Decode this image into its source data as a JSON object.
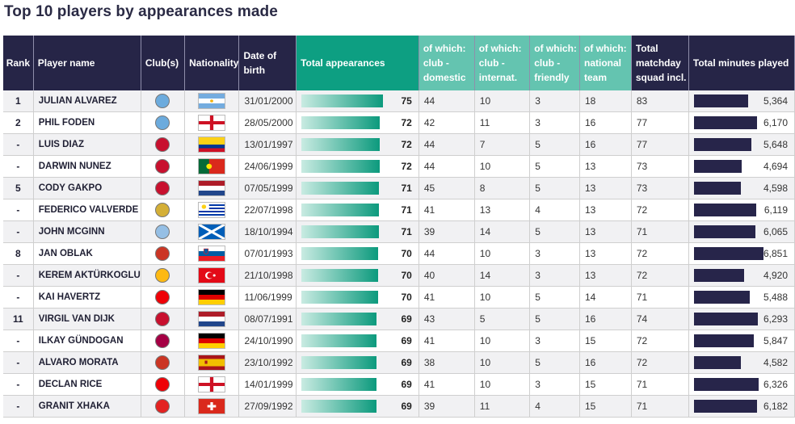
{
  "title": "Top 10 players by appearances made",
  "headers": {
    "rank": "Rank",
    "player": "Player name",
    "club": "Club(s)",
    "nationality": "Nationality",
    "dob": "Date of birth",
    "total": "Total appearances",
    "domestic": "of which: club - domestic",
    "internat": "of which: club - internat.",
    "friendly": "of which: club - friendly",
    "national": "of which: national team",
    "matchday": "Total matchday squad incl.",
    "minutes": "Total minutes played"
  },
  "colors": {
    "header_dark": "#262547",
    "header_total": "#0d9f82",
    "header_sub": "#64c4b0",
    "minutes_bar": "#27254a"
  },
  "chart_data": {
    "type": "table",
    "title": "Top 10 players by appearances made",
    "columns": [
      "Rank",
      "Player name",
      "Club(s)",
      "Nationality",
      "Date of birth",
      "Total appearances",
      "of which: club - domestic",
      "of which: club - internat.",
      "of which: club - friendly",
      "of which: national team",
      "Total matchday squad incl.",
      "Total minutes played"
    ],
    "rows": [
      {
        "rank": "1",
        "name": "JULIAN ALVAREZ",
        "club": "Manchester City",
        "crest": "#6cabdd",
        "flag": "argentina",
        "dob": "31/01/2000",
        "total": 75,
        "domestic": 44,
        "internat": 10,
        "friendly": 3,
        "national": 18,
        "matchday": 83,
        "minutes": "5,364",
        "minutes_value": 5364
      },
      {
        "rank": "2",
        "name": "PHIL FODEN",
        "club": "Manchester City",
        "crest": "#6cabdd",
        "flag": "england",
        "dob": "28/05/2000",
        "total": 72,
        "domestic": 42,
        "internat": 11,
        "friendly": 3,
        "national": 16,
        "matchday": 77,
        "minutes": "6,170",
        "minutes_value": 6170
      },
      {
        "rank": "-",
        "name": "LUIS DIAZ",
        "club": "Liverpool",
        "crest": "#c8102e",
        "flag": "colombia",
        "dob": "13/01/1997",
        "total": 72,
        "domestic": 44,
        "internat": 7,
        "friendly": 5,
        "national": 16,
        "matchday": 77,
        "minutes": "5,648",
        "minutes_value": 5648
      },
      {
        "rank": "-",
        "name": "DARWIN NUNEZ",
        "club": "Liverpool",
        "crest": "#c8102e",
        "flag": "portugal",
        "dob": "24/06/1999",
        "total": 72,
        "domestic": 44,
        "internat": 10,
        "friendly": 5,
        "national": 13,
        "matchday": 73,
        "minutes": "4,694",
        "minutes_value": 4694
      },
      {
        "rank": "5",
        "name": "CODY GAKPO",
        "club": "Liverpool",
        "crest": "#c8102e",
        "flag": "netherlands",
        "dob": "07/05/1999",
        "total": 71,
        "domestic": 45,
        "internat": 8,
        "friendly": 5,
        "national": 13,
        "matchday": 73,
        "minutes": "4,598",
        "minutes_value": 4598
      },
      {
        "rank": "-",
        "name": "FEDERICO VALVERDE",
        "club": "Real Madrid",
        "crest": "#d4af37",
        "flag": "uruguay",
        "dob": "22/07/1998",
        "total": 71,
        "domestic": 41,
        "internat": 13,
        "friendly": 4,
        "national": 13,
        "matchday": 72,
        "minutes": "6,119",
        "minutes_value": 6119
      },
      {
        "rank": "-",
        "name": "JOHN MCGINN",
        "club": "Aston Villa",
        "crest": "#95bfe5",
        "flag": "scotland",
        "dob": "18/10/1994",
        "total": 71,
        "domestic": 39,
        "internat": 14,
        "friendly": 5,
        "national": 13,
        "matchday": 71,
        "minutes": "6,065",
        "minutes_value": 6065
      },
      {
        "rank": "8",
        "name": "JAN OBLAK",
        "club": "Atletico Madrid",
        "crest": "#cb3524",
        "flag": "slovenia",
        "dob": "07/01/1993",
        "total": 70,
        "domestic": 44,
        "internat": 10,
        "friendly": 3,
        "national": 13,
        "matchday": 72,
        "minutes": "6,851",
        "minutes_value": 6851
      },
      {
        "rank": "-",
        "name": "KEREM AKTÜRKOGLU",
        "club": "Galatasaray",
        "crest": "#fdb913",
        "flag": "turkey",
        "dob": "21/10/1998",
        "total": 70,
        "domestic": 40,
        "internat": 14,
        "friendly": 3,
        "national": 13,
        "matchday": 72,
        "minutes": "4,920",
        "minutes_value": 4920
      },
      {
        "rank": "-",
        "name": "KAI HAVERTZ",
        "club": "Arsenal",
        "crest": "#ef0107",
        "flag": "germany",
        "dob": "11/06/1999",
        "total": 70,
        "domestic": 41,
        "internat": 10,
        "friendly": 5,
        "national": 14,
        "matchday": 71,
        "minutes": "5,488",
        "minutes_value": 5488
      },
      {
        "rank": "11",
        "name": "VIRGIL VAN DIJK",
        "club": "Liverpool",
        "crest": "#c8102e",
        "flag": "netherlands",
        "dob": "08/07/1991",
        "total": 69,
        "domestic": 43,
        "internat": 5,
        "friendly": 5,
        "national": 16,
        "matchday": 74,
        "minutes": "6,293",
        "minutes_value": 6293
      },
      {
        "rank": "-",
        "name": "ILKAY GÜNDOGAN",
        "club": "Barcelona",
        "crest": "#a50044",
        "flag": "germany",
        "dob": "24/10/1990",
        "total": 69,
        "domestic": 41,
        "internat": 10,
        "friendly": 3,
        "national": 15,
        "matchday": 72,
        "minutes": "5,847",
        "minutes_value": 5847
      },
      {
        "rank": "-",
        "name": "ALVARO MORATA",
        "club": "Atletico Madrid",
        "crest": "#cb3524",
        "flag": "spain",
        "dob": "23/10/1992",
        "total": 69,
        "domestic": 38,
        "internat": 10,
        "friendly": 5,
        "national": 16,
        "matchday": 72,
        "minutes": "4,582",
        "minutes_value": 4582
      },
      {
        "rank": "-",
        "name": "DECLAN RICE",
        "club": "Arsenal",
        "crest": "#ef0107",
        "flag": "england",
        "dob": "14/01/1999",
        "total": 69,
        "domestic": 41,
        "internat": 10,
        "friendly": 3,
        "national": 15,
        "matchday": 71,
        "minutes": "6,326",
        "minutes_value": 6326
      },
      {
        "rank": "-",
        "name": "GRANIT XHAKA",
        "club": "Bayer Leverkusen",
        "crest": "#e32221",
        "flag": "switzerland",
        "dob": "27/09/1992",
        "total": 69,
        "domestic": 39,
        "internat": 11,
        "friendly": 4,
        "national": 15,
        "matchday": 71,
        "minutes": "6,182",
        "minutes_value": 6182
      }
    ],
    "total_range": [
      0,
      80
    ],
    "minutes_range": [
      0,
      7000
    ]
  }
}
